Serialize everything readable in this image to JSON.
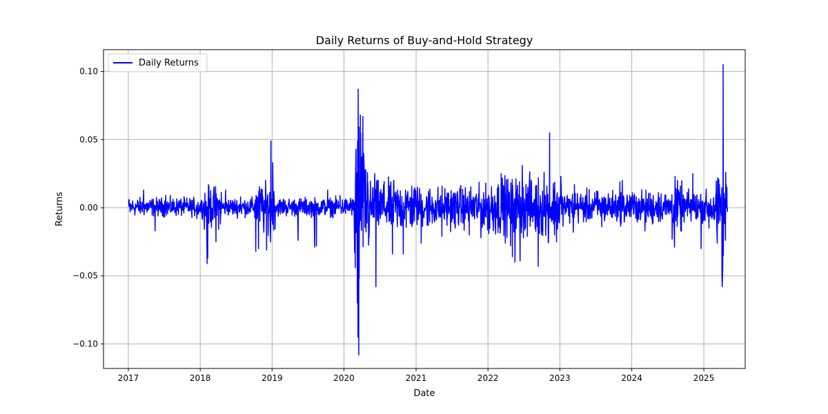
{
  "chart_data": {
    "type": "line",
    "title": "Daily Returns of Buy-and-Hold Strategy",
    "xlabel": "Date",
    "ylabel": "Returns",
    "xlim": [
      "2016-08-28",
      "2025-07-30"
    ],
    "ylim": [
      -0.118,
      0.116
    ],
    "x_ticks": [
      "2017-01-01",
      "2018-01-01",
      "2019-01-01",
      "2020-01-01",
      "2021-01-01",
      "2022-01-01",
      "2023-01-01",
      "2024-01-01",
      "2025-01-01"
    ],
    "x_tick_labels": [
      "2017",
      "2018",
      "2019",
      "2020",
      "2021",
      "2022",
      "2023",
      "2024",
      "2025"
    ],
    "y_ticks": [
      -0.1,
      -0.05,
      0.0,
      0.05,
      0.1
    ],
    "y_tick_labels": [
      "−0.10",
      "−0.05",
      "0.00",
      "0.05",
      "0.10"
    ],
    "grid": true,
    "legend_position": "top-left",
    "series": [
      {
        "name": "Daily Returns",
        "color": "#0000ff",
        "x": [
          "2017-01-03",
          "2017-01-10",
          "2017-03-20",
          "2017-05-17",
          "2017-07-10",
          "2017-09-20",
          "2017-12-15",
          "2018-02-05",
          "2018-02-08",
          "2018-03-22",
          "2018-05-10",
          "2018-07-25",
          "2018-10-10",
          "2018-10-24",
          "2018-11-20",
          "2018-12-04",
          "2018-12-24",
          "2018-12-26",
          "2019-01-04",
          "2019-03-01",
          "2019-05-13",
          "2019-08-05",
          "2019-08-14",
          "2019-10-10",
          "2019-12-12",
          "2020-02-03",
          "2020-02-24",
          "2020-02-27",
          "2020-03-02",
          "2020-03-09",
          "2020-03-10",
          "2020-03-12",
          "2020-03-13",
          "2020-03-16",
          "2020-03-17",
          "2020-03-18",
          "2020-03-24",
          "2020-03-26",
          "2020-04-06",
          "2020-04-29",
          "2020-06-05",
          "2020-06-11",
          "2020-07-20",
          "2020-09-03",
          "2020-09-09",
          "2020-10-28",
          "2020-11-09",
          "2021-01-27",
          "2021-03-04",
          "2021-05-12",
          "2021-07-19",
          "2021-09-28",
          "2021-11-26",
          "2022-01-05",
          "2022-01-24",
          "2022-02-24",
          "2022-03-09",
          "2022-04-26",
          "2022-05-05",
          "2022-05-18",
          "2022-06-13",
          "2022-06-24",
          "2022-08-10",
          "2022-09-13",
          "2022-10-13",
          "2022-11-03",
          "2022-11-10",
          "2022-12-15",
          "2023-01-06",
          "2023-03-10",
          "2023-03-16",
          "2023-05-12",
          "2023-07-13",
          "2023-08-02",
          "2023-10-12",
          "2023-11-02",
          "2023-11-14",
          "2024-01-24",
          "2024-03-08",
          "2024-04-15",
          "2024-05-15",
          "2024-07-24",
          "2024-08-05",
          "2024-08-08",
          "2024-09-06",
          "2024-11-06",
          "2024-12-18",
          "2025-01-27",
          "2025-03-10",
          "2025-04-03",
          "2025-04-04",
          "2025-04-07",
          "2025-04-09",
          "2025-04-10",
          "2025-04-21",
          "2025-04-22",
          "2025-04-28"
        ],
        "values": [
          0.006,
          -0.003,
          0.013,
          -0.017,
          0.009,
          0.005,
          -0.008,
          -0.041,
          -0.037,
          -0.025,
          0.013,
          0.008,
          -0.032,
          -0.03,
          -0.018,
          -0.031,
          -0.025,
          0.049,
          0.033,
          0.006,
          -0.024,
          -0.029,
          -0.028,
          0.013,
          0.009,
          0.007,
          -0.033,
          -0.044,
          0.043,
          -0.07,
          0.049,
          -0.095,
          0.087,
          -0.108,
          0.059,
          -0.052,
          0.068,
          0.055,
          0.067,
          0.026,
          0.025,
          -0.058,
          0.017,
          -0.034,
          0.02,
          -0.034,
          0.013,
          -0.026,
          -0.013,
          -0.021,
          -0.015,
          -0.02,
          -0.022,
          -0.019,
          -0.009,
          0.015,
          0.025,
          -0.028,
          -0.036,
          -0.04,
          -0.039,
          0.031,
          0.019,
          -0.043,
          0.026,
          -0.025,
          0.055,
          -0.025,
          0.023,
          -0.018,
          0.017,
          0.009,
          0.012,
          -0.014,
          0.007,
          0.019,
          0.02,
          0.008,
          -0.017,
          -0.012,
          0.011,
          -0.023,
          -0.029,
          0.023,
          -0.017,
          0.025,
          -0.03,
          -0.015,
          -0.026,
          -0.048,
          -0.058,
          -0.044,
          0.105,
          -0.035,
          -0.024,
          0.026,
          0.015
        ]
      }
    ]
  }
}
